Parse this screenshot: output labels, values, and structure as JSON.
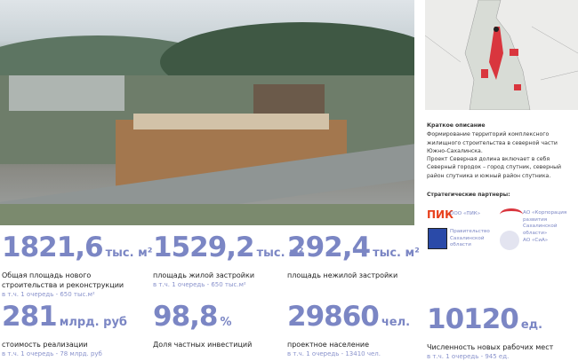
{
  "description": {
    "title": "Краткое описание",
    "text1": "Формирование территорий комплексного жилищного строительства в северной части Южно-Сахалинска.",
    "text2": "Проект Северная долина включает в себя Северный городок – город спутник, северный район спутника и южный район спутника."
  },
  "partners": {
    "title": "Стратегические партнеры:",
    "items": [
      {
        "logo": "ПИК",
        "name": "ООО «ПИК»",
        "color": "#e8401c"
      },
      {
        "name": "АО «Корпорация развития Сахалинской области»"
      },
      {
        "name": "Правительство Сахалинской области"
      },
      {
        "name": "АО «СиА»"
      }
    ]
  },
  "stats": [
    {
      "value": "1821,6",
      "unit": "тыс. м²",
      "label": "Общая площадь нового строительства и реконструкции",
      "sub": "в т.ч. 1 очередь - 650 тыс.м²"
    },
    {
      "value": "1529,2",
      "unit": "тыс. м²",
      "label": "площадь жилой застройки",
      "sub": "в т.ч. 1 очередь - 650 тыс.м²"
    },
    {
      "value": "292,4",
      "unit": "тыс. м²",
      "label": "площадь нежилой застройки",
      "sub": ""
    },
    {
      "value": "281",
      "unit": "млрд. руб",
      "label": "стоимость реализации",
      "sub": "в т.ч. 1 очередь - 78 млрд. руб"
    },
    {
      "value": "98,8",
      "unit": "%",
      "label": "Доля частных инвестиций",
      "sub": ""
    },
    {
      "value": "29860",
      "unit": "чел.",
      "label": "проектное население",
      "sub": "в т.ч. 1 очередь - 13410 чел."
    },
    {
      "value": "10120",
      "unit": "ед.",
      "label": "Численность новых рабочих мест",
      "sub": "в т.ч. 1 очередь - 945 ед."
    }
  ],
  "colors": {
    "accent": "#7b86c4",
    "map_highlight": "#d9363e"
  }
}
